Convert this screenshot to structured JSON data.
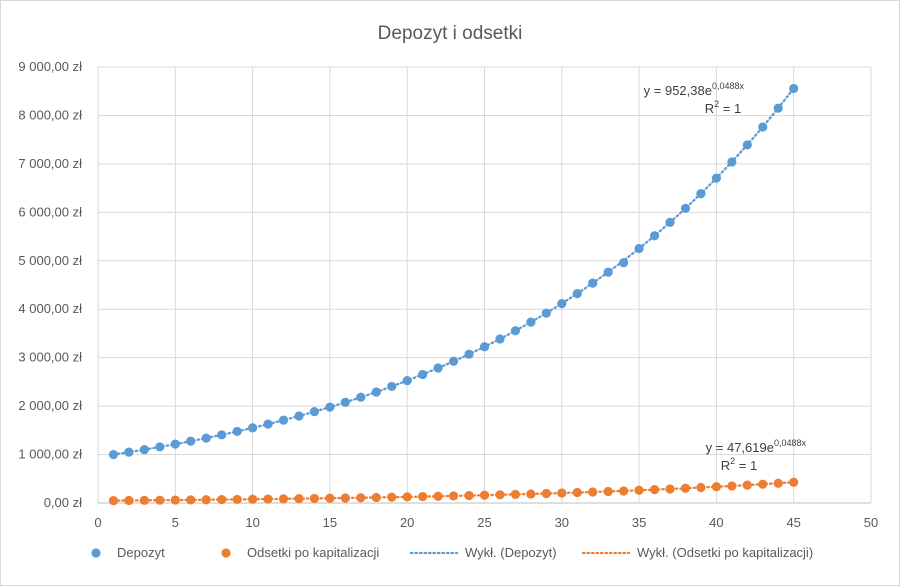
{
  "chart_data": {
    "type": "scatter",
    "title": "Depozyt i odsetki",
    "xlabel": "",
    "ylabel": "",
    "xlim": [
      0,
      50
    ],
    "ylim": [
      0,
      9000
    ],
    "xticks": [
      "0",
      "5",
      "10",
      "15",
      "20",
      "25",
      "30",
      "35",
      "40",
      "45",
      "50"
    ],
    "yticks": [
      "0,00 zł",
      "1 000,00 zł",
      "2 000,00 zł",
      "3 000,00 zł",
      "4 000,00 zł",
      "5 000,00 zł",
      "6 000,00 zł",
      "7 000,00 zł",
      "8 000,00 zł",
      "9 000,00 zł"
    ],
    "grid": true,
    "legend_position": "bottom",
    "x": [
      1,
      2,
      3,
      4,
      5,
      6,
      7,
      8,
      9,
      10,
      11,
      12,
      13,
      14,
      15,
      16,
      17,
      18,
      19,
      20,
      21,
      22,
      23,
      24,
      25,
      26,
      27,
      28,
      29,
      30,
      31,
      32,
      33,
      34,
      35,
      36,
      37,
      38,
      39,
      40,
      41,
      42,
      43,
      44,
      45
    ],
    "series": [
      {
        "name": "Depozyt",
        "color": "#5b9bd5",
        "values": [
          1000.0,
          1050.0,
          1102.5,
          1157.63,
          1215.51,
          1276.28,
          1340.1,
          1407.1,
          1477.46,
          1551.33,
          1628.89,
          1710.34,
          1795.86,
          1885.65,
          1979.93,
          2078.93,
          2182.87,
          2292.02,
          2406.62,
          2526.95,
          2653.3,
          2785.96,
          2925.26,
          3071.52,
          3225.1,
          3386.35,
          3555.67,
          3733.46,
          3920.13,
          4116.14,
          4321.94,
          4538.04,
          4764.94,
          4960.0,
          5253.9,
          5516.0,
          5792.0,
          6081.0,
          6385.0,
          6705.0,
          7040.0,
          7392.0,
          7762.0,
          8150.0,
          8557.0
        ]
      },
      {
        "name": "Odsetki po kapitalizacji",
        "color": "#ed7d31",
        "values": [
          50.0,
          52.5,
          55.13,
          57.88,
          60.78,
          63.81,
          67.01,
          70.36,
          73.87,
          77.57,
          81.44,
          85.52,
          89.79,
          94.28,
          99.0,
          103.95,
          109.14,
          114.6,
          120.33,
          126.35,
          132.67,
          139.3,
          146.26,
          153.58,
          161.26,
          169.32,
          177.78,
          186.67,
          196.01,
          205.81,
          216.1,
          226.9,
          238.25,
          248.0,
          262.7,
          275.8,
          289.6,
          304.05,
          319.25,
          335.25,
          352.0,
          369.6,
          388.1,
          407.5,
          427.85
        ]
      }
    ],
    "trendlines": [
      {
        "name": "Wykł. (Depozyt)",
        "color": "#5b9bd5",
        "a": 952.38,
        "b": 0.0488,
        "equation_base": "y = 952,38e",
        "equation_exp": "0,0488x",
        "r2_base": "R",
        "r2_sup": "2",
        "r2_rest": " = 1"
      },
      {
        "name": "Wykł. (Odsetki po kapitalizacji)",
        "color": "#ed7d31",
        "a": 47.619,
        "b": 0.0488,
        "equation_base": "y = 47,619e",
        "equation_exp": "0,0488x",
        "r2_base": "R",
        "r2_sup": "2",
        "r2_rest": " = 1"
      }
    ]
  }
}
